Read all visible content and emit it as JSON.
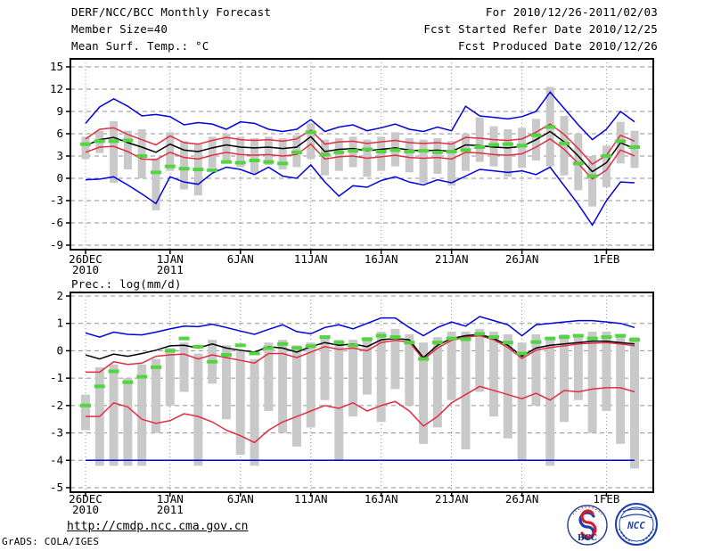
{
  "header": {
    "title": "DERF/NCC/BCC Monthly Forecast",
    "member_size": "Member Size=40",
    "for_period": "For 2010/12/26-2011/02/03",
    "refer_date": "Fcst Started Refer Date 2010/12/25",
    "produced_date": "Fcst Produced Date 2010/12/26"
  },
  "footer": {
    "url": "http://cmdp.ncc.cma.gov.cn",
    "credit": "GrADS: COLA/IGES",
    "logos": [
      {
        "name": "BCC",
        "label": "BCC"
      },
      {
        "name": "NCC",
        "label": "NCC"
      }
    ]
  },
  "colors": {
    "extreme_line": "#0000e0",
    "std_line": "#e22d44",
    "mean_line": "#000000",
    "reference_dash": "#52d540",
    "spread_bar": "#c9c9c9",
    "grid": "#909090"
  },
  "chart_data": [
    {
      "id": "temp",
      "type": "line",
      "title": "Mean Surf. Temp.: °C",
      "xlabel": "",
      "ylabel": "°C",
      "ylim": [
        -9,
        15
      ],
      "grid": true,
      "yticks": [
        15,
        12,
        9,
        6,
        3,
        0,
        -3,
        -6,
        -9
      ],
      "xticks": [
        {
          "day": 0,
          "label": "26DEC",
          "sub": "2010"
        },
        {
          "day": 6,
          "label": "1JAN",
          "sub": "2011"
        },
        {
          "day": 11,
          "label": "6JAN",
          "sub": ""
        },
        {
          "day": 16,
          "label": "11JAN",
          "sub": ""
        },
        {
          "day": 21,
          "label": "16JAN",
          "sub": ""
        },
        {
          "day": 26,
          "label": "21JAN",
          "sub": ""
        },
        {
          "day": 31,
          "label": "26JAN",
          "sub": ""
        },
        {
          "day": 37,
          "label": "1FEB",
          "sub": ""
        }
      ],
      "series": [
        {
          "name": "ensemble_max",
          "color_key": "extreme_line",
          "values": [
            7.4,
            9.6,
            10.7,
            9.7,
            8.4,
            8.6,
            8.3,
            7.2,
            7.5,
            7.3,
            6.6,
            7.6,
            7.4,
            6.6,
            6.3,
            6.6,
            7.9,
            6.3,
            6.9,
            7.2,
            6.4,
            6.8,
            7.3,
            6.6,
            6.3,
            6.9,
            6.4,
            9.7,
            8.4,
            8.2,
            8.0,
            8.3,
            9.0,
            11.6,
            9.4,
            7.2,
            5.2,
            6.6,
            9.0,
            7.6
          ]
        },
        {
          "name": "ensemble_plus_std",
          "color_key": "std_line",
          "values": [
            5.3,
            6.6,
            6.8,
            5.9,
            5.2,
            4.5,
            5.7,
            4.8,
            4.6,
            5.1,
            5.5,
            5.2,
            5.1,
            5.2,
            5.0,
            5.3,
            6.5,
            4.6,
            4.9,
            5.0,
            4.7,
            4.9,
            5.1,
            4.8,
            4.7,
            4.8,
            4.6,
            5.5,
            5.4,
            5.2,
            5.1,
            5.3,
            6.2,
            7.3,
            5.9,
            4.0,
            1.9,
            3.1,
            5.8,
            5.0
          ]
        },
        {
          "name": "ensemble_mean",
          "color_key": "mean_line",
          "values": [
            4.4,
            5.2,
            5.5,
            4.8,
            4.2,
            3.5,
            4.6,
            3.8,
            3.6,
            4.1,
            4.5,
            4.2,
            4.1,
            4.2,
            4.0,
            4.2,
            5.6,
            3.6,
            3.9,
            4.0,
            3.7,
            3.9,
            4.1,
            3.8,
            3.7,
            3.8,
            3.6,
            4.5,
            4.4,
            4.2,
            4.1,
            4.3,
            5.2,
            6.3,
            4.9,
            3.0,
            0.9,
            2.1,
            4.8,
            4.0
          ]
        },
        {
          "name": "ensemble_minus_std",
          "color_key": "std_line",
          "values": [
            3.5,
            4.2,
            4.3,
            3.6,
            2.6,
            2.5,
            3.5,
            2.8,
            2.6,
            3.1,
            3.5,
            3.2,
            3.1,
            3.2,
            3.0,
            3.2,
            4.6,
            2.6,
            2.9,
            3.0,
            2.7,
            2.9,
            3.1,
            2.8,
            2.7,
            2.8,
            2.6,
            3.5,
            3.4,
            3.2,
            3.1,
            3.3,
            4.2,
            5.3,
            3.9,
            2.0,
            -0.1,
            1.1,
            3.8,
            3.0
          ]
        },
        {
          "name": "ensemble_min",
          "color_key": "extreme_line",
          "values": [
            -0.2,
            -0.1,
            0.2,
            -0.9,
            -2.1,
            -3.4,
            0.2,
            -0.5,
            -0.8,
            0.7,
            1.5,
            1.2,
            0.5,
            1.5,
            0.3,
            0.0,
            1.8,
            -0.5,
            -2.4,
            -1.0,
            -1.2,
            -0.3,
            0.2,
            -0.5,
            -0.9,
            -0.2,
            -0.6,
            0.3,
            1.2,
            1.0,
            0.8,
            1.0,
            0.5,
            1.5,
            -1.0,
            -3.5,
            -6.3,
            -3.0,
            -0.5,
            -0.6
          ]
        }
      ],
      "reference_dashes": [
        4.6,
        5.0,
        5.0,
        5.1,
        3.0,
        0.8,
        1.6,
        1.3,
        1.2,
        1.1,
        2.2,
        2.1,
        2.4,
        2.2,
        2.0,
        3.5,
        6.2,
        3.2,
        3.5,
        3.7,
        3.9,
        3.6,
        3.8,
        3.6,
        3.7,
        3.5,
        3.6,
        3.8,
        4.2,
        4.5,
        4.6,
        4.4,
        5.8,
        6.9,
        4.7,
        2.0,
        0.3,
        3.0,
        5.0,
        4.2
      ],
      "spread_bars": {
        "low": [
          2.6,
          3.4,
          -0.6,
          1.2,
          0.0,
          -4.3,
          1.0,
          -1.5,
          -2.3,
          1.4,
          2.2,
          1.5,
          0.6,
          1.8,
          1.2,
          1.5,
          2.6,
          0.4,
          1.0,
          1.5,
          0.2,
          1.0,
          1.6,
          0.8,
          -0.6,
          0.6,
          -1.0,
          1.0,
          2.2,
          1.6,
          0.2,
          1.4,
          2.4,
          1.6,
          0.4,
          -1.6,
          -3.8,
          -1.2,
          2.0,
          1.4
        ],
        "high": [
          5.6,
          6.4,
          7.7,
          6.4,
          6.6,
          2.7,
          6.2,
          5.0,
          4.6,
          5.6,
          6.0,
          5.6,
          5.4,
          5.6,
          5.4,
          5.8,
          7.4,
          5.2,
          5.4,
          5.6,
          5.2,
          5.6,
          6.2,
          5.4,
          5.2,
          5.4,
          5.0,
          6.0,
          8.2,
          7.0,
          6.6,
          6.8,
          8.0,
          12.3,
          8.4,
          6.0,
          3.0,
          4.4,
          7.6,
          6.4
        ]
      }
    },
    {
      "id": "prec",
      "type": "line",
      "title": "Prec.: log(mm/d)",
      "xlabel": "",
      "ylabel": "log(mm/d)",
      "ylim": [
        -5,
        2
      ],
      "grid": true,
      "yticks": [
        2,
        1,
        0,
        -1,
        -2,
        -3,
        -4,
        -5
      ],
      "xticks": [
        {
          "day": 0,
          "label": "26DEC",
          "sub": "2010"
        },
        {
          "day": 6,
          "label": "1JAN",
          "sub": "2011"
        },
        {
          "day": 11,
          "label": "6JAN",
          "sub": ""
        },
        {
          "day": 16,
          "label": "11JAN",
          "sub": ""
        },
        {
          "day": 21,
          "label": "16JAN",
          "sub": ""
        },
        {
          "day": 26,
          "label": "21JAN",
          "sub": ""
        },
        {
          "day": 31,
          "label": "26JAN",
          "sub": ""
        },
        {
          "day": 37,
          "label": "1FEB",
          "sub": ""
        }
      ],
      "series": [
        {
          "name": "ensemble_max",
          "color_key": "extreme_line",
          "values": [
            0.65,
            0.5,
            0.68,
            0.6,
            0.58,
            0.68,
            0.8,
            0.9,
            0.88,
            0.97,
            0.85,
            0.72,
            0.6,
            0.78,
            0.95,
            0.7,
            0.62,
            0.85,
            0.95,
            0.8,
            1.0,
            1.2,
            1.2,
            0.85,
            0.55,
            0.85,
            1.05,
            0.9,
            1.25,
            1.1,
            0.95,
            0.55,
            0.95,
            1.0,
            1.05,
            1.1,
            1.1,
            1.05,
            1.0,
            0.85
          ]
        },
        {
          "name": "ensemble_plus_std",
          "color_key": "std_line",
          "values": [
            -0.78,
            -0.78,
            -0.4,
            -0.5,
            -0.45,
            -0.2,
            -0.15,
            -0.12,
            -0.3,
            -0.15,
            -0.25,
            -0.35,
            -0.45,
            -0.1,
            -0.1,
            -0.25,
            -0.05,
            0.15,
            0.05,
            0.1,
            0.0,
            0.3,
            0.38,
            0.32,
            -0.32,
            0.1,
            0.38,
            0.5,
            0.55,
            0.4,
            0.12,
            -0.28,
            0.02,
            0.12,
            0.18,
            0.25,
            0.28,
            0.3,
            0.25,
            0.18
          ]
        },
        {
          "name": "ensemble_mean",
          "color_key": "mean_line",
          "values": [
            -0.15,
            -0.3,
            -0.12,
            -0.2,
            -0.1,
            0.02,
            0.18,
            0.2,
            0.1,
            0.25,
            0.1,
            0.02,
            -0.05,
            0.15,
            0.1,
            -0.05,
            0.15,
            0.3,
            0.2,
            0.25,
            0.15,
            0.4,
            0.45,
            0.4,
            -0.25,
            0.2,
            0.45,
            0.55,
            0.6,
            0.45,
            0.2,
            -0.2,
            0.1,
            0.2,
            0.25,
            0.3,
            0.35,
            0.35,
            0.3,
            0.25
          ]
        },
        {
          "name": "ensemble_minus_std",
          "color_key": "std_line",
          "values": [
            -2.4,
            -2.4,
            -1.9,
            -2.05,
            -2.5,
            -2.65,
            -2.55,
            -2.3,
            -2.4,
            -2.6,
            -2.9,
            -3.1,
            -3.35,
            -2.9,
            -2.6,
            -2.4,
            -2.2,
            -2.0,
            -2.1,
            -1.9,
            -2.2,
            -2.0,
            -1.85,
            -2.2,
            -2.75,
            -2.4,
            -1.9,
            -1.6,
            -1.3,
            -1.45,
            -1.6,
            -1.75,
            -1.55,
            -1.8,
            -1.45,
            -1.5,
            -1.4,
            -1.35,
            -1.35,
            -1.5
          ]
        },
        {
          "name": "ensemble_min",
          "color_key": "extreme_line",
          "values": [
            -4.0,
            -4.0,
            -4.0,
            -4.0,
            -4.0,
            -4.0,
            -4.0,
            -4.0,
            -4.0,
            -4.0,
            -4.0,
            -4.0,
            -4.0,
            -4.0,
            -4.0,
            -4.0,
            -4.0,
            -4.0,
            -4.0,
            -4.0,
            -4.0,
            -4.0,
            -4.0,
            -4.0,
            -4.0,
            -4.0,
            -4.0,
            -4.0,
            -4.0,
            -4.0,
            -4.0,
            -4.0,
            -4.0,
            -4.0,
            -4.0,
            -4.0,
            -4.0,
            -4.0,
            -4.0,
            -4.0
          ]
        }
      ],
      "reference_dashes": [
        -2.0,
        -1.3,
        -0.75,
        -1.15,
        -0.95,
        -0.6,
        0.0,
        0.45,
        0.15,
        -0.4,
        -0.15,
        0.2,
        -0.1,
        0.1,
        0.25,
        0.1,
        0.17,
        0.5,
        0.3,
        0.2,
        0.42,
        0.55,
        0.5,
        0.3,
        -0.3,
        0.3,
        0.45,
        0.42,
        0.62,
        0.5,
        0.3,
        -0.1,
        0.32,
        0.45,
        0.5,
        0.55,
        0.45,
        0.5,
        0.55,
        0.4
      ],
      "spread_bars": {
        "low": [
          -2.9,
          -4.2,
          -4.2,
          -4.2,
          -4.2,
          -3.0,
          -2.0,
          -1.5,
          -4.2,
          -1.2,
          -2.5,
          -3.8,
          -4.2,
          -2.2,
          -3.0,
          -3.5,
          -2.8,
          -1.8,
          -4.0,
          -2.4,
          -1.6,
          -2.6,
          -1.4,
          -2.0,
          -3.4,
          -2.8,
          -1.8,
          -3.6,
          -1.5,
          -2.4,
          -3.2,
          -4.0,
          -2.0,
          -4.2,
          -2.6,
          -1.8,
          -3.0,
          -2.2,
          -3.4,
          -4.3
        ],
        "high": [
          -1.6,
          -0.6,
          -0.5,
          -1.0,
          -0.5,
          -0.3,
          0.1,
          0.3,
          -0.1,
          0.4,
          0.2,
          0.0,
          -0.3,
          0.3,
          0.4,
          0.2,
          0.3,
          0.5,
          0.4,
          0.4,
          0.5,
          0.7,
          0.8,
          0.6,
          0.3,
          0.5,
          0.7,
          0.7,
          0.8,
          0.7,
          0.6,
          0.3,
          0.6,
          0.5,
          0.6,
          0.6,
          0.7,
          0.7,
          0.6,
          0.5
        ]
      }
    }
  ]
}
